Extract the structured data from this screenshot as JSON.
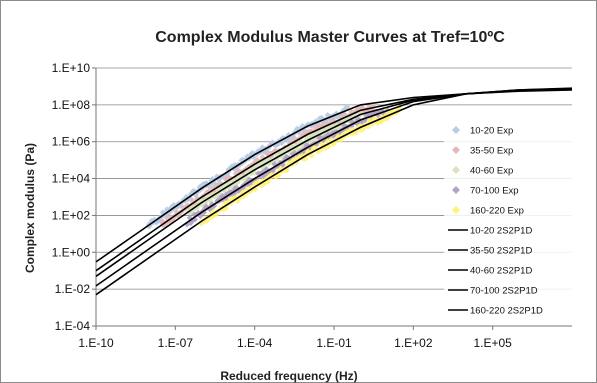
{
  "chart_data": {
    "type": "scatter",
    "title": "Complex Modulus Master Curves at Tref=10ºC",
    "xlabel": "Reduced frequency (Hz)",
    "ylabel": "Complex modulus (Pa)",
    "x_scale": "log",
    "y_scale": "log",
    "xlim": [
      1e-10,
      100000000.0
    ],
    "ylim": [
      0.0001,
      10000000000.0
    ],
    "x_ticks": [
      "1.E-10",
      "1.E-07",
      "1.E-04",
      "1.E-01",
      "1.E+02",
      "1.E+05"
    ],
    "x_tick_values": [
      1e-10,
      1e-07,
      0.0001,
      0.1,
      100.0,
      100000.0
    ],
    "y_ticks": [
      "1.E+10",
      "1.E+08",
      "1.E+06",
      "1.E+04",
      "1.E+02",
      "1.E+00",
      "1.E-02",
      "1.E-04"
    ],
    "y_tick_values": [
      10000000000.0,
      100000000.0,
      1000000.0,
      10000.0,
      100.0,
      1.0,
      0.01,
      0.0001
    ],
    "grid": "horizontal",
    "legend_position": "right",
    "exp_series": [
      {
        "name": "10-20 Exp",
        "color": "#b8cce4",
        "x_range": [
          1e-08,
          0.3
        ],
        "curve_index": 0
      },
      {
        "name": "35-50 Exp",
        "color": "#e6b9b8",
        "x_range": [
          3e-08,
          3.0
        ],
        "curve_index": 1
      },
      {
        "name": "40-60 Exp",
        "color": "#d7e4bd",
        "x_range": [
          3e-07,
          1.0
        ],
        "curve_index": 2
      },
      {
        "name": "70-100 Exp",
        "color": "#b3a2c7",
        "x_range": [
          3e-07,
          10.0
        ],
        "curve_index": 3
      },
      {
        "name": "160-220 Exp",
        "color": "#fff27a",
        "x_range": [
          1e-06,
          30.0
        ],
        "curve_index": 4
      }
    ],
    "model_series": [
      {
        "name": "10-20 2S2P1D",
        "color": "#000000",
        "points": [
          [
            1e-10,
            0.3
          ],
          [
            1e-08,
            30
          ],
          [
            1e-06,
            3000
          ],
          [
            0.0001,
            200000
          ],
          [
            0.01,
            7000000
          ],
          [
            1.0,
            100000000
          ],
          [
            100.0,
            250000000
          ],
          [
            10000.0,
            400000000
          ],
          [
            1000000.0,
            550000000
          ],
          [
            100000000.0,
            650000000
          ]
        ]
      },
      {
        "name": "35-50 2S2P1D",
        "color": "#000000",
        "points": [
          [
            1e-10,
            0.1
          ],
          [
            1e-08,
            10
          ],
          [
            1e-06,
            1000
          ],
          [
            0.0001,
            60000
          ],
          [
            0.01,
            2500000
          ],
          [
            1.0,
            50000000
          ],
          [
            100.0,
            200000000
          ],
          [
            10000.0,
            400000000
          ],
          [
            1000000.0,
            600000000
          ],
          [
            100000000.0,
            700000000
          ]
        ]
      },
      {
        "name": "40-60 2S2P1D",
        "color": "#000000",
        "points": [
          [
            1e-10,
            0.05
          ],
          [
            1e-08,
            5
          ],
          [
            1e-06,
            500
          ],
          [
            0.0001,
            30000
          ],
          [
            0.01,
            1200000
          ],
          [
            1.0,
            30000000
          ],
          [
            100.0,
            180000000
          ],
          [
            10000.0,
            400000000
          ],
          [
            1000000.0,
            600000000
          ],
          [
            100000000.0,
            700000000
          ]
        ]
      },
      {
        "name": "70-100 2S2P1D",
        "color": "#000000",
        "points": [
          [
            1e-10,
            0.015
          ],
          [
            1e-08,
            1.5
          ],
          [
            1e-06,
            150
          ],
          [
            0.0001,
            10000
          ],
          [
            0.01,
            500000
          ],
          [
            1.0,
            15000000
          ],
          [
            100.0,
            150000000
          ],
          [
            10000.0,
            400000000
          ],
          [
            1000000.0,
            650000000
          ],
          [
            100000000.0,
            750000000
          ]
        ]
      },
      {
        "name": "160-220 2S2P1D",
        "color": "#000000",
        "points": [
          [
            1e-10,
            0.005
          ],
          [
            1e-08,
            0.5
          ],
          [
            1e-06,
            50
          ],
          [
            0.0001,
            3500
          ],
          [
            0.01,
            200000
          ],
          [
            1.0,
            6000000
          ],
          [
            100.0,
            100000000
          ],
          [
            10000.0,
            400000000
          ],
          [
            1000000.0,
            650000000
          ],
          [
            100000000.0,
            800000000
          ]
        ]
      }
    ]
  }
}
